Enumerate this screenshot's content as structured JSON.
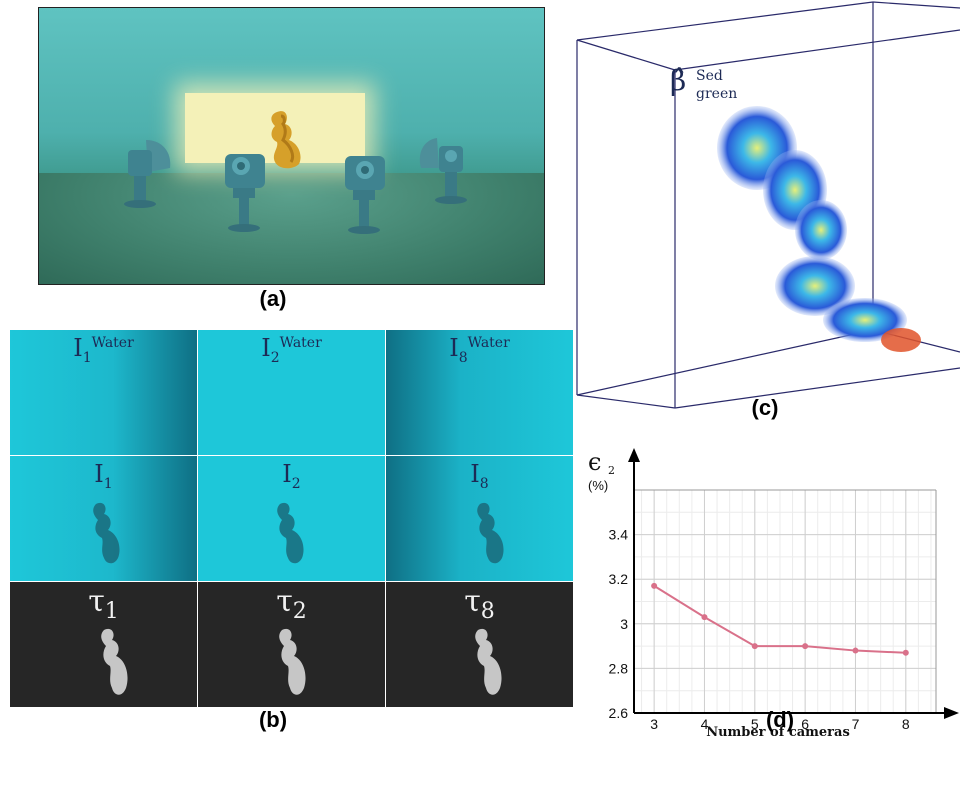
{
  "captions": {
    "a": "(a)",
    "b": "(b)",
    "c": "(c)",
    "d": "(d)"
  },
  "panel_b": {
    "columns": [
      {
        "water": {
          "base": "I",
          "sub": "1",
          "sup": "Water"
        },
        "image": {
          "base": "I",
          "sub": "1"
        },
        "tau": {
          "base": "τ",
          "sub": "1"
        }
      },
      {
        "water": {
          "base": "I",
          "sub": "2",
          "sup": "Water"
        },
        "image": {
          "base": "I",
          "sub": "2"
        },
        "tau": {
          "base": "τ",
          "sub": "2"
        }
      },
      {
        "water": {
          "base": "I",
          "sub": "8",
          "sup": "Water"
        },
        "image": {
          "base": "I",
          "sub": "8"
        },
        "tau": {
          "base": "τ",
          "sub": "8"
        }
      }
    ]
  },
  "panel_c": {
    "label": {
      "base": "β̂",
      "sup": "Sed",
      "sub": "green"
    }
  },
  "colors": {
    "water_cell": "#1ec7d9",
    "dark_cell": "#262626",
    "line": "#d9718a",
    "label_navy": "#1d2a55"
  },
  "chart_data": {
    "type": "line",
    "ylabel_symbol": "ϵ",
    "ylabel_sub": "2",
    "ylabel_unit": "(%)",
    "xlabel": "Number of cameras",
    "x": [
      3,
      4,
      5,
      6,
      7,
      8
    ],
    "series": [
      {
        "values": [
          3.17,
          3.03,
          2.9,
          2.9,
          2.88,
          2.87
        ]
      }
    ],
    "x_ticks": [
      "3",
      "4",
      "5",
      "6",
      "7",
      "8"
    ],
    "y_ticks": [
      "2.6",
      "2.8",
      "3",
      "3.2",
      "3.4"
    ],
    "xlim": [
      2.6,
      8.6
    ],
    "ylim": [
      2.6,
      3.6
    ],
    "grid": true
  }
}
